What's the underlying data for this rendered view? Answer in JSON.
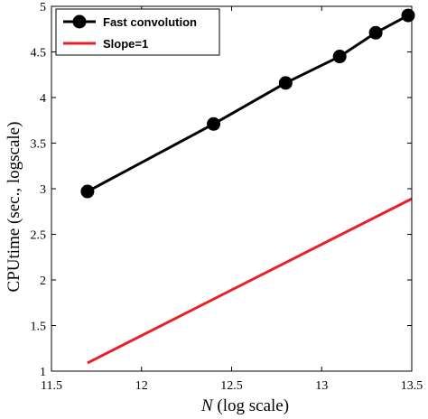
{
  "chart_data": {
    "type": "line",
    "xlabel_italic": "N",
    "xlabel_rest": "(log scale)",
    "ylabel": "CPUtime (sec., logscale)",
    "xlim": [
      11.5,
      13.5
    ],
    "ylim": [
      1,
      5
    ],
    "xticks": [
      "11.5",
      "12",
      "12.5",
      "13",
      "13.5"
    ],
    "yticks": [
      "1",
      "1.5",
      "2",
      "2.5",
      "3",
      "3.5",
      "4",
      "4.5",
      "5"
    ],
    "grid": false,
    "legend_position": "top-left",
    "series": [
      {
        "name": "Fast convolution",
        "color": "#000000",
        "marker": "circle",
        "x": [
          11.7,
          12.4,
          12.8,
          13.1,
          13.3,
          13.48
        ],
        "y": [
          2.97,
          3.71,
          4.16,
          4.45,
          4.71,
          4.9
        ]
      },
      {
        "name": "Slope=1",
        "color": "#e8202a",
        "marker": "none",
        "x": [
          11.7,
          13.5
        ],
        "y": [
          1.09,
          2.89
        ]
      }
    ]
  }
}
